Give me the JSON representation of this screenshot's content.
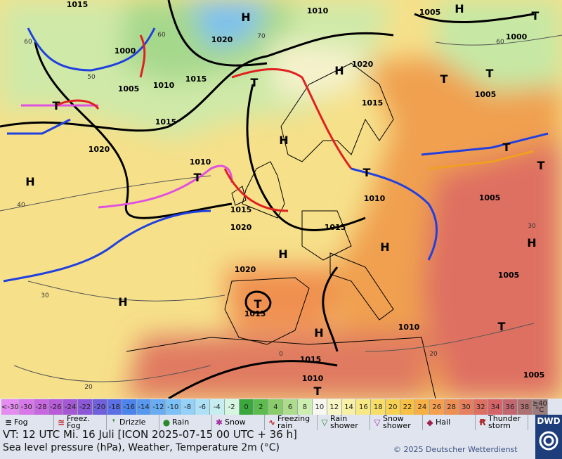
{
  "map": {
    "highs_lows": [
      "H",
      "H",
      "H",
      "H",
      "H",
      "H",
      "H",
      "H",
      "H",
      "H",
      "T",
      "T",
      "T",
      "T",
      "T",
      "T",
      "T",
      "T",
      "T",
      "T",
      "T",
      "T"
    ],
    "pressure_labels": [
      "1015",
      "1010",
      "1005",
      "1020",
      "1000",
      "1000",
      "1015",
      "1010",
      "1005",
      "1020",
      "1015",
      "1005",
      "1015",
      "1020",
      "1010",
      "1015",
      "1020",
      "1015",
      "1010",
      "1005",
      "1020",
      "1015",
      "1010",
      "1005",
      "1015",
      "1010",
      "1005"
    ],
    "isotherm_labels": [
      "60",
      "50",
      "40",
      "30",
      "20",
      "0",
      "20",
      "60",
      "70",
      "60",
      "30"
    ]
  },
  "temperature_scale": [
    {
      "label": "<-30",
      "color": "#e48cf0"
    },
    {
      "label": "-30",
      "color": "#d878e8"
    },
    {
      "label": "-28",
      "color": "#c868e0"
    },
    {
      "label": "-26",
      "color": "#b85cd8"
    },
    {
      "label": "-24",
      "color": "#a458d4"
    },
    {
      "label": "-22",
      "color": "#8c58d8"
    },
    {
      "label": "-20",
      "color": "#7060dc"
    },
    {
      "label": "-18",
      "color": "#5a70e4"
    },
    {
      "label": "-16",
      "color": "#4c84ec"
    },
    {
      "label": "-14",
      "color": "#5898f0"
    },
    {
      "label": "-12",
      "color": "#68acf4"
    },
    {
      "label": "-10",
      "color": "#7cc0f8"
    },
    {
      "label": "-8",
      "color": "#94d0f8"
    },
    {
      "label": "-6",
      "color": "#aee0f6"
    },
    {
      "label": "-4",
      "color": "#c6eef0"
    },
    {
      "label": "-2",
      "color": "#d6f6e2"
    },
    {
      "label": "0",
      "color": "#3aa83c"
    },
    {
      "label": "2",
      "color": "#5cbc50"
    },
    {
      "label": "4",
      "color": "#8acc6c"
    },
    {
      "label": "6",
      "color": "#acdc8c"
    },
    {
      "label": "8",
      "color": "#cceeb0"
    },
    {
      "label": "10",
      "color": "#f8f8f0"
    },
    {
      "label": "12",
      "color": "#f8f6c4"
    },
    {
      "label": "14",
      "color": "#f8f0a4"
    },
    {
      "label": "16",
      "color": "#f8e884"
    },
    {
      "label": "18",
      "color": "#f8de66"
    },
    {
      "label": "20",
      "color": "#f8d052"
    },
    {
      "label": "22",
      "color": "#f8c044"
    },
    {
      "label": "24",
      "color": "#f8b044"
    },
    {
      "label": "26",
      "color": "#f4a050"
    },
    {
      "label": "28",
      "color": "#ee9054"
    },
    {
      "label": "30",
      "color": "#e6805e"
    },
    {
      "label": "32",
      "color": "#de7062"
    },
    {
      "label": "34",
      "color": "#d46468"
    },
    {
      "label": "36",
      "color": "#c46670"
    },
    {
      "label": "38",
      "color": "#ac7272"
    },
    {
      "label": "≥40 °C",
      "color": "#9c7c7c"
    }
  ],
  "weather_legend": [
    "Fog",
    "Freez. Fog",
    "Drizzle",
    "Rain",
    "Snow",
    "Freezing rain",
    "Rain shower",
    "Snow shower",
    "Hail",
    "Thunder storm"
  ],
  "footer": {
    "valid_time": "VT: 12 UTC Mi.  16 Juli [ICON 2025-07-15  00 UTC + 36 h]",
    "description": "Sea level pressure (hPa), Weather, Temperature 2m (°C)",
    "copyright": "© 2025 Deutscher Wetterdienst",
    "logo": "DWD"
  }
}
